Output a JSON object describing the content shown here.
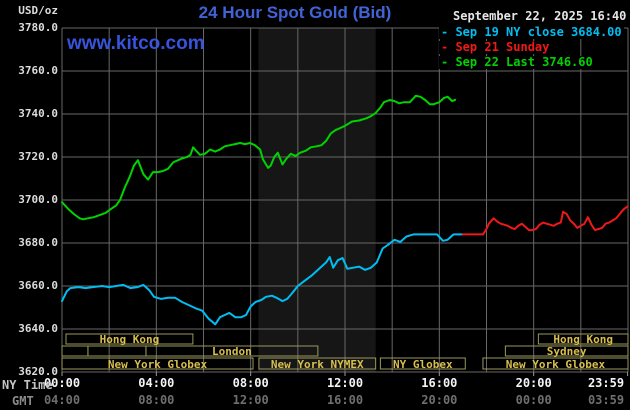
{
  "header": {
    "unit": "USD/oz",
    "title": "24 Hour Spot Gold (Bid)",
    "watermark": "www.kitco.com",
    "datetime": "September 22, 2025 16:40"
  },
  "legend": {
    "items": [
      {
        "text": "- Sep 19 NY close 3684.00",
        "color": "#00bdf2"
      },
      {
        "text": "- Sep 21 Sunday",
        "color": "#f01818"
      },
      {
        "text": "- Sep 22 Last 3746.60",
        "color": "#00d300"
      }
    ]
  },
  "axes": {
    "ny_caption": "NY Time",
    "gmt_caption": "GMT",
    "y_ticks": [
      {
        "label": "3780.0",
        "value": 3780
      },
      {
        "label": "3760.0",
        "value": 3760
      },
      {
        "label": "3740.0",
        "value": 3740
      },
      {
        "label": "3720.0",
        "value": 3720
      },
      {
        "label": "3700.0",
        "value": 3700
      },
      {
        "label": "3680.0",
        "value": 3680
      },
      {
        "label": "3660.0",
        "value": 3660
      },
      {
        "label": "3640.0",
        "value": 3640
      },
      {
        "label": "3620.0",
        "value": 3620
      }
    ],
    "x_ticks": [
      {
        "ny": "00:00",
        "gmt": "04:00",
        "hour": 0
      },
      {
        "ny": "04:00",
        "gmt": "08:00",
        "hour": 4
      },
      {
        "ny": "08:00",
        "gmt": "12:00",
        "hour": 8
      },
      {
        "ny": "12:00",
        "gmt": "16:00",
        "hour": 12
      },
      {
        "ny": "16:00",
        "gmt": "20:00",
        "hour": 16
      },
      {
        "ny": "20:00",
        "gmt": "00:00",
        "hour": 20
      },
      {
        "ny": "23:59",
        "gmt": "03:59",
        "hour": 23.983
      }
    ]
  },
  "sessions": [
    {
      "row": "A",
      "start_hour": 0.17,
      "end_hour": 5.55,
      "label": "Hong Kong"
    },
    {
      "row": "A",
      "start_hour": 20.2,
      "end_hour": 24,
      "label": "Hong Kong"
    },
    {
      "row": "B",
      "start_hour": 0,
      "end_hour": 1.1,
      "label": ""
    },
    {
      "row": "B",
      "start_hour": 1.1,
      "end_hour": 3.56,
      "label": ""
    },
    {
      "row": "B",
      "start_hour": 3.56,
      "end_hour": 10.85,
      "label": "London"
    },
    {
      "row": "B",
      "start_hour": 18.8,
      "end_hour": 24,
      "label": "Sydney"
    },
    {
      "row": "C",
      "start_hour": 0,
      "end_hour": 8.1,
      "label": "New York Globex"
    },
    {
      "row": "C",
      "start_hour": 8.35,
      "end_hour": 13.3,
      "label": "New York NYMEX"
    },
    {
      "row": "C",
      "start_hour": 13.5,
      "end_hour": 17.1,
      "label": "NY Globex"
    },
    {
      "row": "C",
      "start_hour": 17.85,
      "end_hour": 24,
      "label": "New York Globex"
    }
  ],
  "colors": {
    "background": "#000000",
    "grid": "#686868",
    "nymex_band": "#161616",
    "session_border": "#9a9a5a",
    "session_text": "#d9bf4e",
    "title_blue": "#4263d6",
    "watermark_blue": "#3853dc",
    "sep19_cyan": "#00bdf2",
    "sep21_red": "#f01818",
    "sep22_green": "#00d300"
  },
  "chart_data": {
    "type": "line",
    "title": "24 Hour Spot Gold (Bid)",
    "xlabel": "NY Time (hours)",
    "ylabel": "USD/oz",
    "xlim": [
      0,
      24
    ],
    "ylim": [
      3620,
      3780
    ],
    "grid": true,
    "band": {
      "name": "New York NYMEX session",
      "start_hour": 8.33,
      "end_hour": 13.3
    },
    "series": [
      {
        "name": "Sep 19 NY close 3684.00",
        "color": "#00bdf2",
        "x": [
          0,
          0.2,
          0.35,
          0.7,
          1.0,
          1.3,
          1.7,
          2.0,
          2.3,
          2.6,
          2.9,
          3.2,
          3.45,
          3.7,
          3.9,
          4.2,
          4.5,
          4.8,
          5.1,
          5.4,
          5.7,
          5.95,
          6.2,
          6.5,
          6.7,
          6.9,
          7.1,
          7.35,
          7.6,
          7.8,
          8.0,
          8.2,
          8.45,
          8.65,
          8.9,
          9.1,
          9.35,
          9.55,
          9.75,
          10.0,
          10.3,
          10.6,
          10.9,
          11.2,
          11.35,
          11.5,
          11.7,
          11.9,
          12.1,
          12.35,
          12.6,
          12.85,
          13.1,
          13.35,
          13.6,
          13.8,
          14.1,
          14.35,
          14.6,
          14.9,
          15.3,
          15.9,
          16.15,
          16.35,
          16.6,
          17.0
        ],
        "y": [
          3653,
          3657.5,
          3659,
          3659.5,
          3659,
          3659.5,
          3660,
          3659.5,
          3660,
          3660.5,
          3659,
          3659.5,
          3660.5,
          3658,
          3655,
          3654,
          3654.5,
          3654.5,
          3652.5,
          3651,
          3649.5,
          3648.5,
          3645,
          3642.2,
          3645.5,
          3646.5,
          3647.5,
          3645.5,
          3645.5,
          3646.5,
          3650.5,
          3652.5,
          3653.5,
          3655,
          3655.5,
          3654.5,
          3653,
          3654,
          3656.5,
          3660,
          3662.5,
          3665,
          3668,
          3671,
          3673.5,
          3668.5,
          3672,
          3673,
          3668,
          3668.5,
          3669,
          3667.5,
          3668.5,
          3671,
          3677.5,
          3679,
          3681.5,
          3680.5,
          3683,
          3684,
          3684,
          3684,
          3681,
          3681.5,
          3684,
          3684
        ]
      },
      {
        "name": "Sep 21 Sunday",
        "color": "#f01818",
        "x": [
          17.0,
          17.5,
          17.85,
          18.0,
          18.1,
          18.3,
          18.45,
          18.6,
          18.75,
          18.9,
          19.05,
          19.2,
          19.35,
          19.5,
          19.65,
          19.8,
          19.95,
          20.1,
          20.25,
          20.4,
          20.55,
          20.7,
          20.85,
          21.0,
          21.15,
          21.25,
          21.4,
          21.55,
          21.7,
          21.85,
          22.0,
          22.15,
          22.3,
          22.45,
          22.6,
          22.75,
          22.9,
          23.05,
          23.2,
          23.35,
          23.5,
          23.65,
          23.8,
          23.98
        ],
        "y": [
          3684,
          3684,
          3684,
          3686.5,
          3689,
          3691.5,
          3690,
          3689,
          3688.5,
          3688,
          3687,
          3686.5,
          3688,
          3689,
          3687.5,
          3686,
          3686,
          3686.5,
          3688.5,
          3689.5,
          3689,
          3688.5,
          3688,
          3689,
          3689.5,
          3694.5,
          3693.5,
          3690.5,
          3689,
          3687,
          3688,
          3689,
          3692,
          3688.5,
          3686,
          3686.5,
          3687,
          3689,
          3689.5,
          3690.5,
          3691.5,
          3693.5,
          3695.5,
          3697
        ]
      },
      {
        "name": "Sep 22 Last 3746.60",
        "color": "#00d300",
        "x": [
          0,
          0.25,
          0.5,
          0.75,
          0.9,
          1.1,
          1.35,
          1.6,
          1.85,
          2.1,
          2.3,
          2.46,
          2.67,
          2.88,
          3.05,
          3.22,
          3.45,
          3.65,
          3.86,
          4.07,
          4.28,
          4.5,
          4.71,
          4.92,
          5.13,
          5.3,
          5.45,
          5.56,
          5.72,
          5.85,
          6.06,
          6.28,
          6.49,
          6.7,
          6.9,
          7.12,
          7.34,
          7.55,
          7.76,
          7.97,
          8.18,
          8.4,
          8.52,
          8.65,
          8.74,
          8.85,
          9.0,
          9.15,
          9.35,
          9.5,
          9.7,
          9.9,
          10.1,
          10.35,
          10.55,
          10.8,
          11.0,
          11.2,
          11.4,
          11.6,
          11.8,
          12.0,
          12.3,
          12.6,
          12.9,
          13.1,
          13.3,
          13.5,
          13.65,
          13.9,
          14.1,
          14.3,
          14.5,
          14.75,
          15.0,
          15.2,
          15.4,
          15.6,
          15.75,
          16.0,
          16.2,
          16.35,
          16.55,
          16.67
        ],
        "y": [
          3699,
          3696,
          3693.5,
          3691.5,
          3691,
          3691.5,
          3692,
          3693,
          3694,
          3696,
          3697.5,
          3700,
          3706,
          3711,
          3716,
          3718.5,
          3712,
          3709.5,
          3713,
          3713,
          3713.5,
          3714.5,
          3717.5,
          3718.5,
          3719.5,
          3720,
          3721,
          3724.5,
          3722.5,
          3721,
          3721.5,
          3723.5,
          3722.5,
          3723.5,
          3725,
          3725.5,
          3726,
          3726.5,
          3726,
          3726.5,
          3725.5,
          3723.5,
          3719,
          3716.5,
          3715,
          3716,
          3720,
          3722,
          3716.5,
          3719,
          3721.5,
          3720.5,
          3722,
          3723,
          3724.5,
          3725,
          3725.5,
          3727.5,
          3731,
          3732.5,
          3733.5,
          3734.5,
          3736.5,
          3737,
          3738,
          3739,
          3740.5,
          3743,
          3745.5,
          3746.5,
          3746,
          3745,
          3745.5,
          3745.5,
          3748.5,
          3748,
          3746.5,
          3744.5,
          3744.5,
          3745.5,
          3747.5,
          3748,
          3746,
          3746.6
        ]
      }
    ]
  }
}
